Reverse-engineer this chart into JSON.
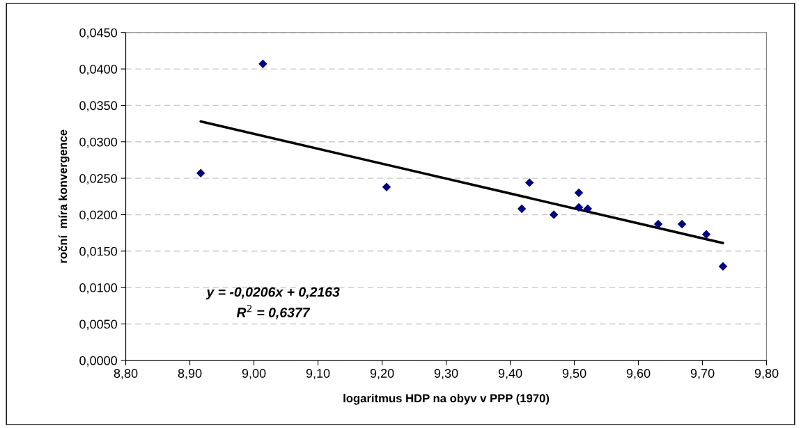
{
  "chart_data": {
    "type": "scatter",
    "xlabel": "logaritmus HDP na obyv v PPP (1970)",
    "ylabel": "roční  míra konvergence",
    "series": [
      {
        "color": "#000080",
        "marker": "diamond",
        "x": [
          8.917,
          9.014,
          9.207,
          9.418,
          9.43,
          9.468,
          9.507,
          9.507,
          9.521,
          9.631,
          9.668,
          9.706,
          9.732
        ],
        "values": [
          0.0257,
          0.0407,
          0.0238,
          0.0208,
          0.0244,
          0.02,
          0.023,
          0.021,
          0.0208,
          0.0187,
          0.0187,
          0.0173,
          0.0129
        ]
      },
      {
        "type": "line",
        "color": "#000000",
        "marker": "none",
        "line_style": "solid",
        "x": [
          8.917,
          9.732
        ],
        "values": [
          0.0328,
          0.0161
        ]
      }
    ],
    "annotations": [
      "y = -0,0206x + 0,2163",
      "R$^{2}$ = 0,6377"
    ],
    "xlim": [
      8.8,
      9.8
    ],
    "xticks": [
      {
        "value": 8.8,
        "label": "8,80"
      },
      {
        "value": 8.9,
        "label": "8,90"
      },
      {
        "value": 9.0,
        "label": "9,00"
      },
      {
        "value": 9.1,
        "label": "9,10"
      },
      {
        "value": 9.2,
        "label": "9,20"
      },
      {
        "value": 9.3,
        "label": "9,30"
      },
      {
        "value": 9.4,
        "label": "9,40"
      },
      {
        "value": 9.5,
        "label": "9,50"
      },
      {
        "value": 9.6,
        "label": "9,60"
      },
      {
        "value": 9.7,
        "label": "9,70"
      },
      {
        "value": 9.8,
        "label": "9,80"
      }
    ],
    "ylim": [
      0,
      0.045
    ],
    "yticks": [
      {
        "value": 0,
        "label": "0,0000"
      },
      {
        "value": 0.005,
        "label": "0,0050"
      },
      {
        "value": 0.01,
        "label": "0,0100"
      },
      {
        "value": 0.015,
        "label": "0,0150"
      },
      {
        "value": 0.02,
        "label": "0,0200"
      },
      {
        "value": 0.025,
        "label": "0,0250"
      },
      {
        "value": 0.03,
        "label": "0,0300"
      },
      {
        "value": 0.035,
        "label": "0,0350"
      },
      {
        "value": 0.04,
        "label": "0,0400"
      },
      {
        "value": 0.045,
        "label": "0,0450"
      }
    ],
    "grid": "y"
  }
}
